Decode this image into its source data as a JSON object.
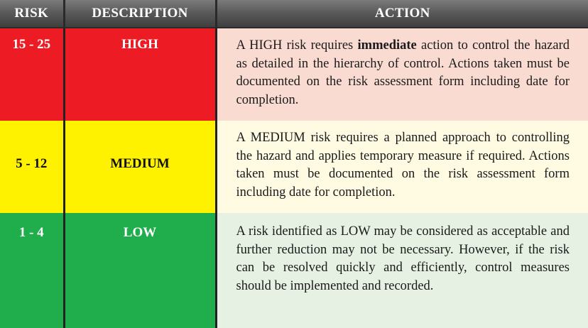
{
  "table": {
    "headers": {
      "risk": "RISK",
      "description": "DESCRIPTION",
      "action": "ACTION"
    },
    "rows": [
      {
        "level": "high",
        "risk": "15 - 25",
        "description": "HIGH",
        "action_before": "A HIGH risk requires ",
        "action_emphasis": "immediate",
        "action_after": " action to control the hazard as detailed in the hierarchy of control. Actions taken must be documented on the risk assessment form including date for completion.",
        "color": "#ed1c24",
        "action_bg": "#fadbd2"
      },
      {
        "level": "medium",
        "risk": "5 - 12",
        "description": "MEDIUM",
        "action": "A MEDIUM risk requires a planned approach to controlling the hazard and applies temporary measure if required. Actions taken must be documented on the risk assessment form including date for completion.",
        "color": "#fff200",
        "action_bg": "#fffbe3"
      },
      {
        "level": "low",
        "risk": "1 - 4",
        "description": "LOW",
        "action": "A risk identified as LOW may be considered as acceptable and further reduction may not be necessary. However, if the risk can be resolved quickly and efficiently, control measures should be implemented and recorded.",
        "color": "#1fae4b",
        "action_bg": "#e6f1e3"
      }
    ]
  }
}
